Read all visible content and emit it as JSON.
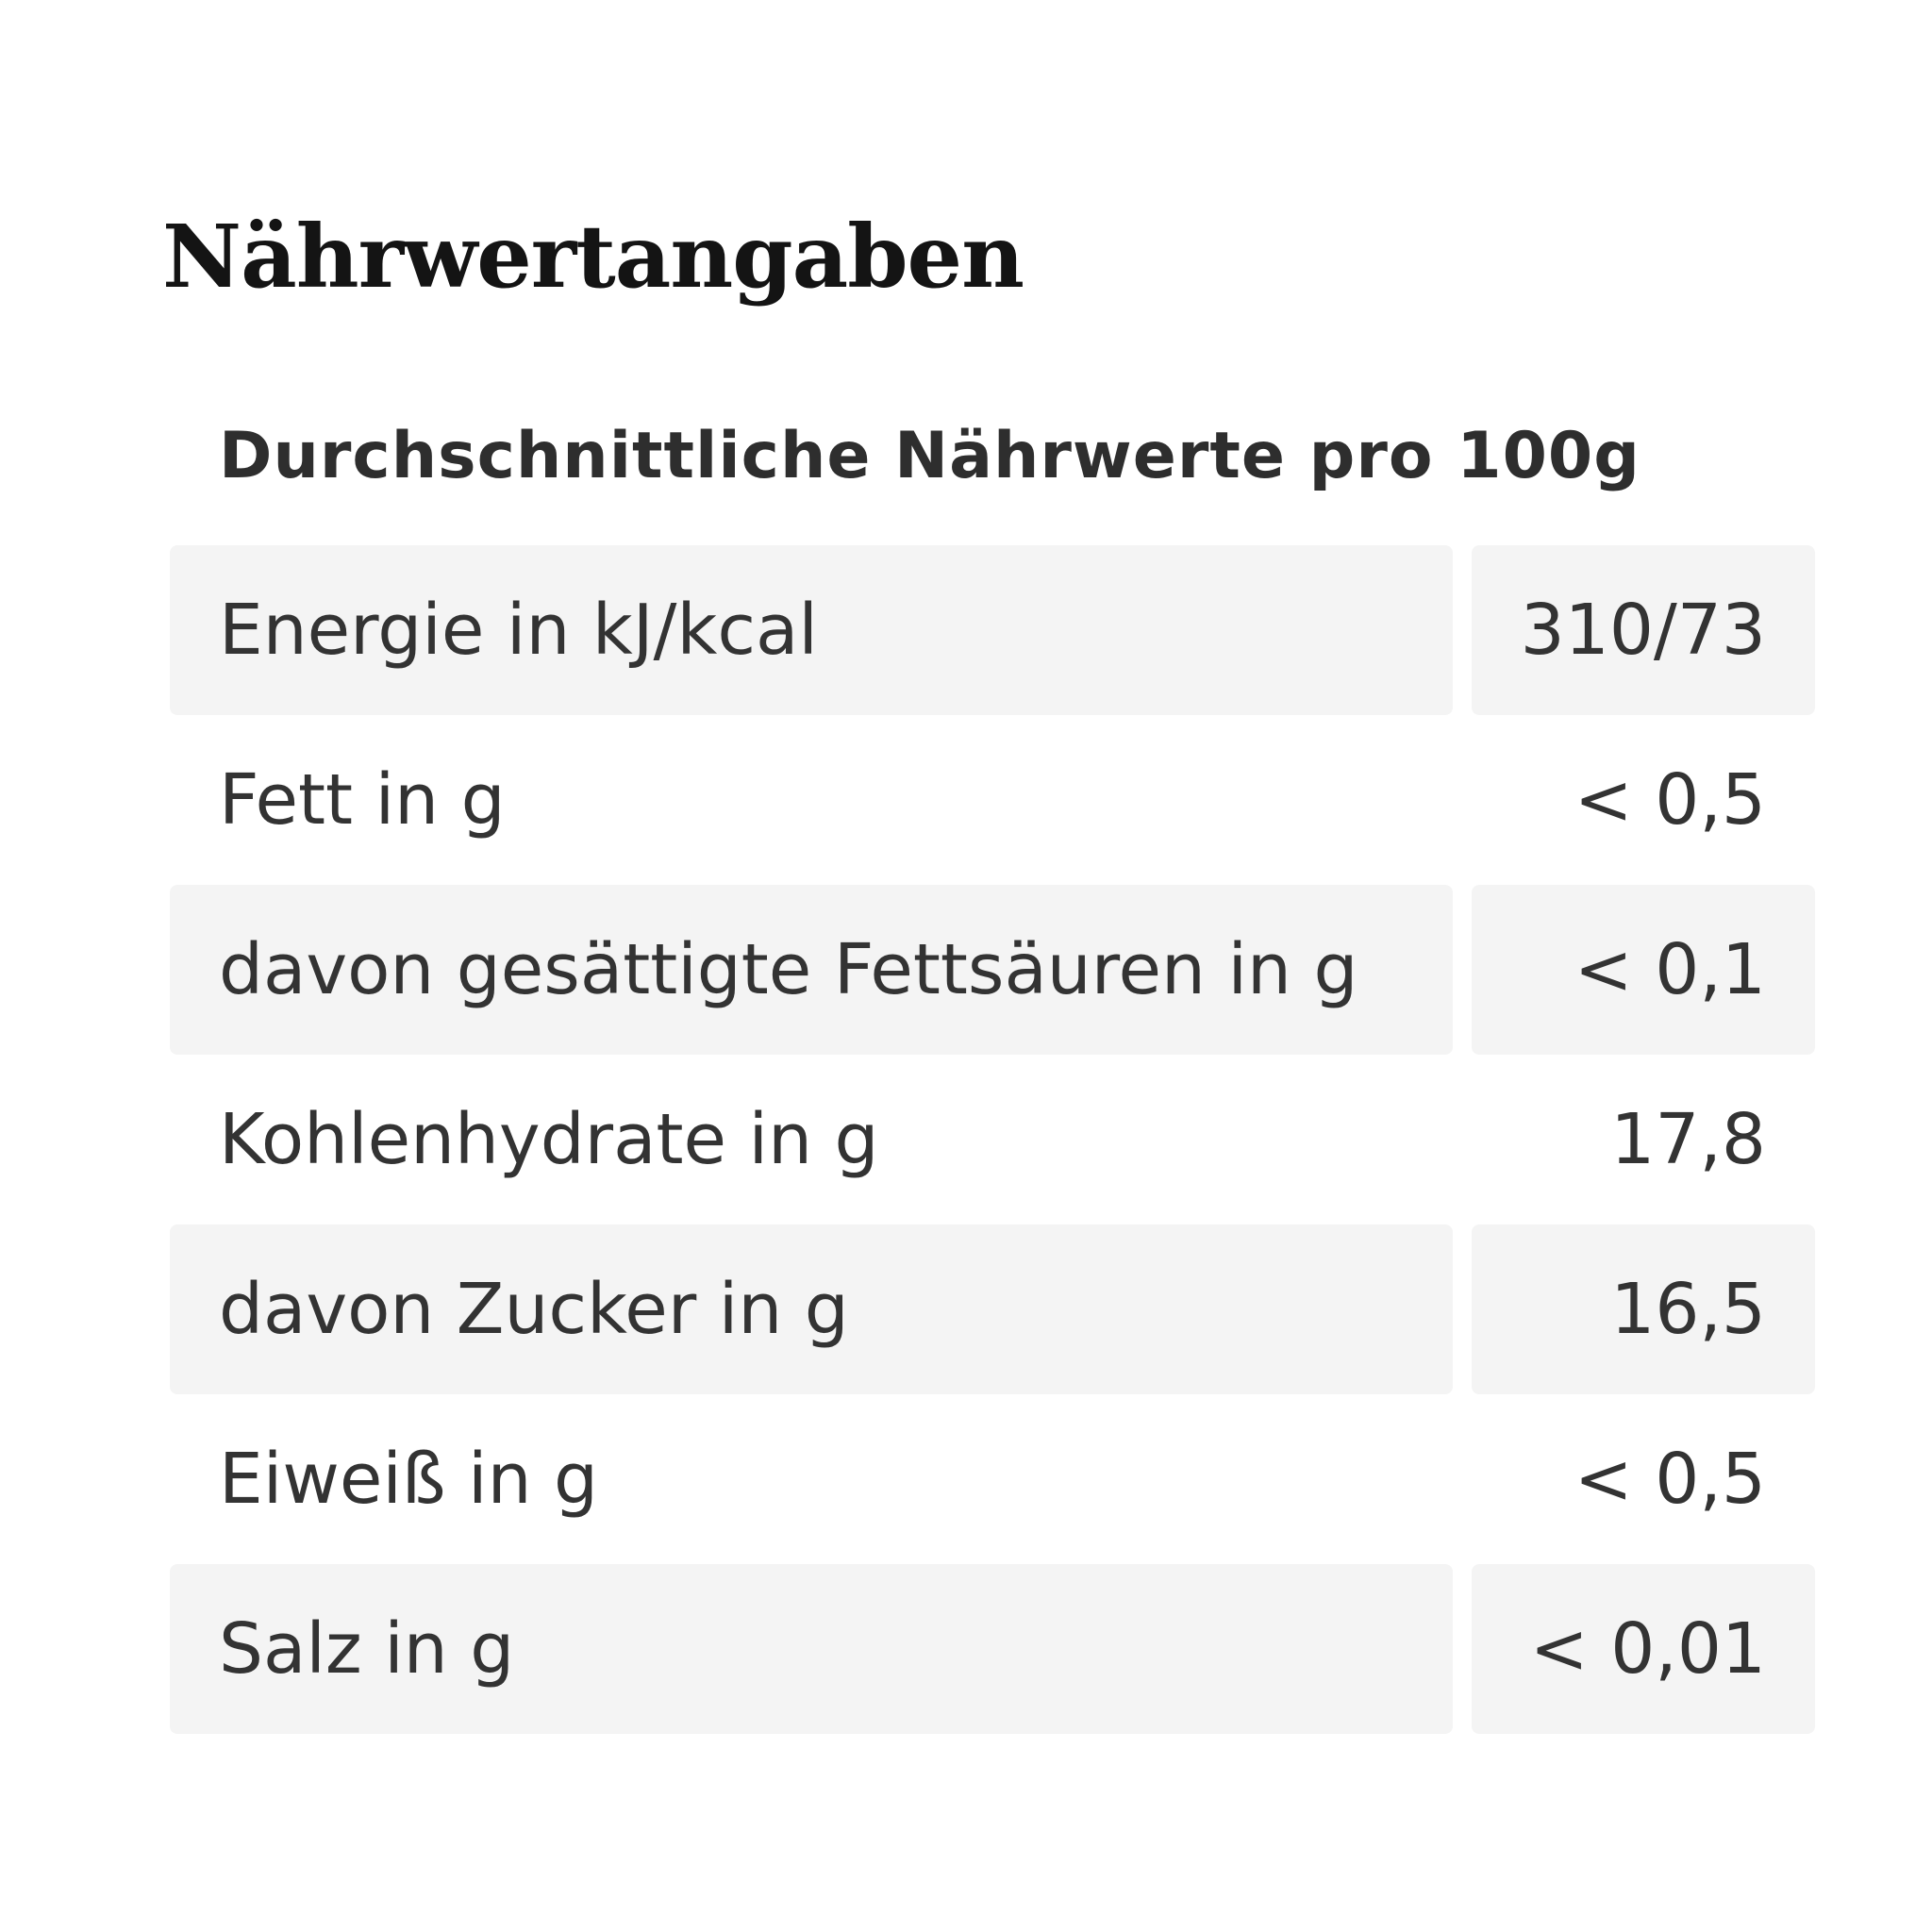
{
  "title": "Nährwertangaben",
  "subtitle": "Durchschnittliche Nährwerte pro 100g",
  "rows": [
    {
      "label": "Energie in kJ/kcal",
      "value": "310/73"
    },
    {
      "label": "Fett in g",
      "value": "< 0,5"
    },
    {
      "label": "davon gesättigte Fettsäuren in g",
      "value": "< 0,1"
    },
    {
      "label": "Kohlenhydrate in g",
      "value": "17,8"
    },
    {
      "label": "davon Zucker in g",
      "value": "16,5"
    },
    {
      "label": "Eiweiß in g",
      "value": "< 0,5"
    },
    {
      "label": "Salz in g",
      "value": "< 0,01"
    }
  ],
  "colors": {
    "row_shade": "#f4f4f4",
    "text": "#333333",
    "title": "#141414"
  }
}
